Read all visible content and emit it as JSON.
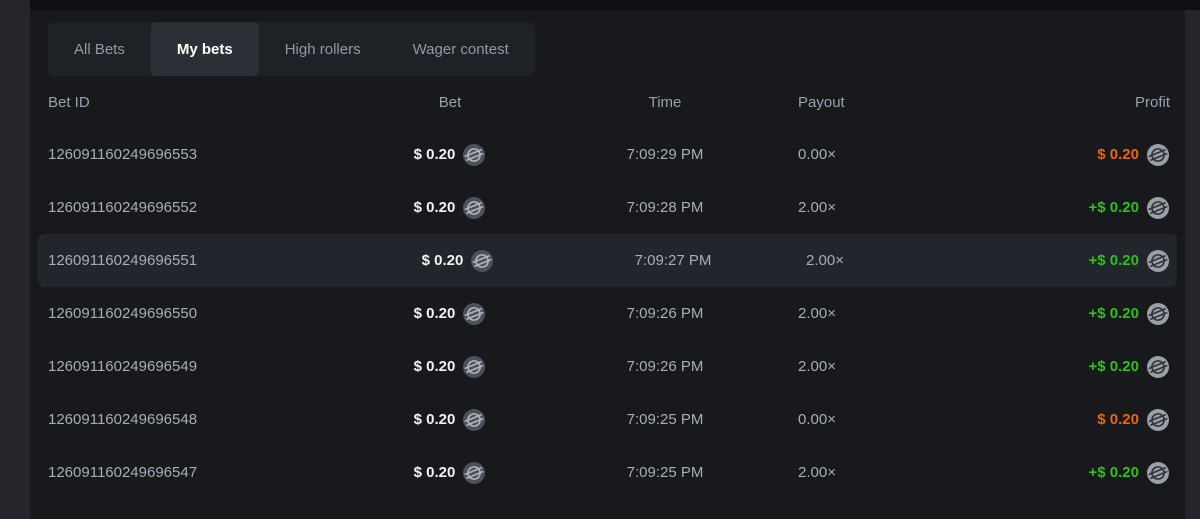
{
  "colors": {
    "page_background": "#24262b",
    "panel_background": "#17191d",
    "top_strip": "#0d0f12",
    "tabbar_background": "#1e2126",
    "active_tab_background": "#2c2f36",
    "row_highlight": "#22252b",
    "text_muted": "#a6aeba",
    "text_bright": "#f0f2f4",
    "profit_positive": "#2fc117",
    "profit_negative": "#ed640c",
    "coin_dark_fill": "#4d525a",
    "coin_dark_glyph": "#b0b6bd",
    "coin_light_fill": "#9aa0a7",
    "coin_light_glyph": "#2e3237"
  },
  "tabs": {
    "items": [
      {
        "label": "All Bets",
        "active": false
      },
      {
        "label": "My bets",
        "active": true
      },
      {
        "label": "High rollers",
        "active": false
      },
      {
        "label": "Wager contest",
        "active": false
      }
    ]
  },
  "table": {
    "headers": [
      "Bet ID",
      "Bet",
      "Time",
      "Payout",
      "Profit"
    ],
    "rows": [
      {
        "id": "126091160249696553",
        "bet": "$ 0.20",
        "time": "7:09:29 PM",
        "payout": "0.00×",
        "profit": "$ 0.20",
        "profit_positive": false,
        "highlighted": false
      },
      {
        "id": "126091160249696552",
        "bet": "$ 0.20",
        "time": "7:09:28 PM",
        "payout": "2.00×",
        "profit": "+$ 0.20",
        "profit_positive": true,
        "highlighted": false
      },
      {
        "id": "126091160249696551",
        "bet": "$ 0.20",
        "time": "7:09:27 PM",
        "payout": "2.00×",
        "profit": "+$ 0.20",
        "profit_positive": true,
        "highlighted": true
      },
      {
        "id": "126091160249696550",
        "bet": "$ 0.20",
        "time": "7:09:26 PM",
        "payout": "2.00×",
        "profit": "+$ 0.20",
        "profit_positive": true,
        "highlighted": false
      },
      {
        "id": "126091160249696549",
        "bet": "$ 0.20",
        "time": "7:09:26 PM",
        "payout": "2.00×",
        "profit": "+$ 0.20",
        "profit_positive": true,
        "highlighted": false
      },
      {
        "id": "126091160249696548",
        "bet": "$ 0.20",
        "time": "7:09:25 PM",
        "payout": "0.00×",
        "profit": "$ 0.20",
        "profit_positive": false,
        "highlighted": false
      },
      {
        "id": "126091160249696547",
        "bet": "$ 0.20",
        "time": "7:09:25 PM",
        "payout": "2.00×",
        "profit": "+$ 0.20",
        "profit_positive": true,
        "highlighted": false
      }
    ]
  }
}
